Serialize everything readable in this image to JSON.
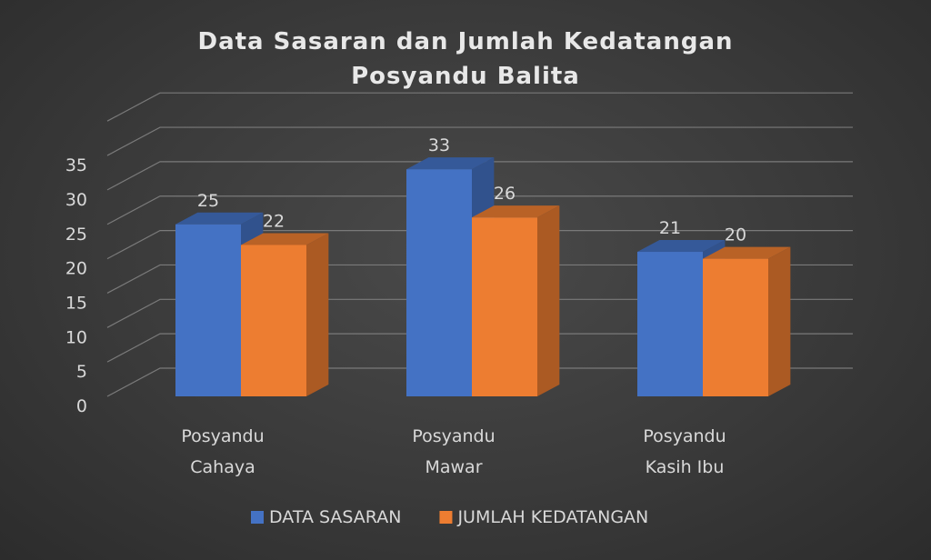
{
  "chart_data": {
    "type": "bar",
    "title": "Data Sasaran dan Jumlah Kedatangan",
    "subtitle": "Posyandu Balita",
    "categories": [
      [
        "Posyandu",
        "Cahaya"
      ],
      [
        "Posyandu",
        "Mawar"
      ],
      [
        "Posyandu",
        "Kasih Ibu"
      ]
    ],
    "series": [
      {
        "name": "DATA SASARAN",
        "values": [
          25,
          33,
          21
        ],
        "color": "#4472c4"
      },
      {
        "name": "JUMLAH KEDATANGAN",
        "values": [
          22,
          26,
          20
        ],
        "color": "#ed7d31"
      }
    ],
    "ylim": [
      0,
      35
    ],
    "yticks": [
      "0",
      "5",
      "10",
      "15",
      "20",
      "25",
      "30",
      "35"
    ],
    "grid": true,
    "legend_position": "bottom",
    "style": "3d-clustered-column"
  }
}
